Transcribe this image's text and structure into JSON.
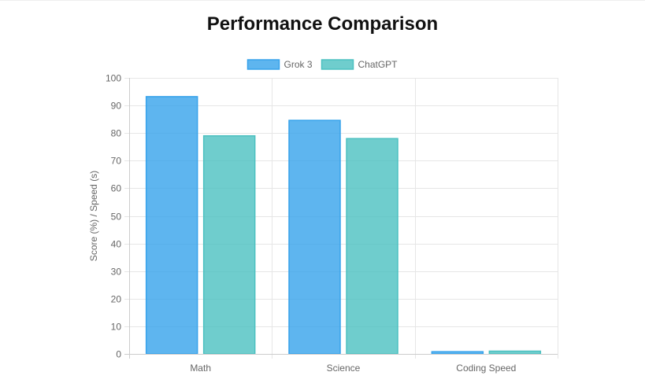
{
  "chart_data": {
    "type": "bar",
    "title": "Performance Comparison",
    "xlabel": "",
    "ylabel": "Score (%) / Speed (s)",
    "categories": [
      "Math",
      "Science",
      "Coding Speed"
    ],
    "series": [
      {
        "name": "Grok 3",
        "values": [
          93.2,
          84.6,
          0.8
        ],
        "color": "#36a2eb"
      },
      {
        "name": "ChatGPT",
        "values": [
          79,
          78,
          1.0
        ],
        "color": "#4bc0c0"
      }
    ],
    "ylim": [
      0,
      100
    ],
    "yticks": [
      0,
      10,
      20,
      30,
      40,
      50,
      60,
      70,
      80,
      90,
      100
    ],
    "grid": true,
    "legend_position": "top-center"
  },
  "colors": {
    "grid": "#e6e6e6",
    "axis": "#cccccc",
    "tick_text": "#666666",
    "title": "#111111"
  }
}
